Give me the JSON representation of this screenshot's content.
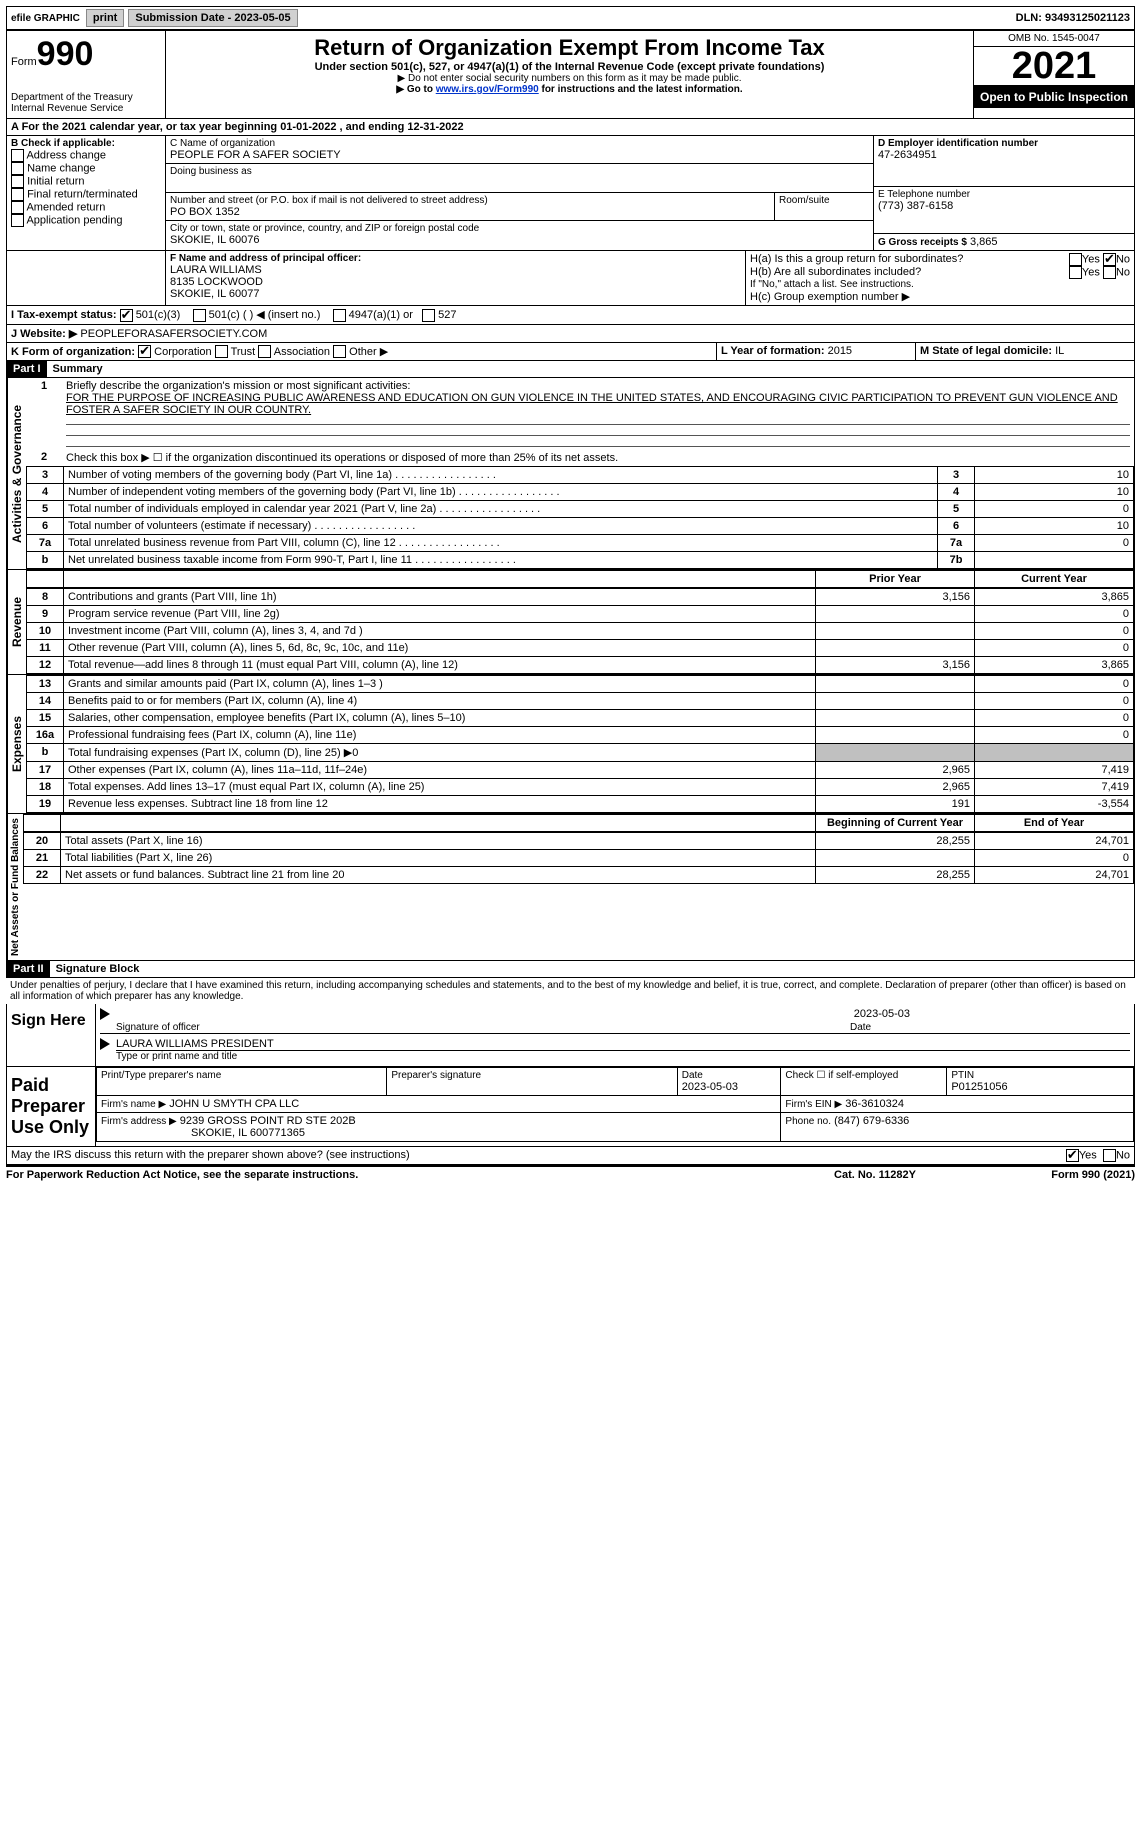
{
  "topbar": {
    "efile": "efile GRAPHIC",
    "print": "print",
    "submission_label": "Submission Date - 2023-05-05",
    "dln_label": "DLN: 93493125021123"
  },
  "header": {
    "form_word": "Form",
    "form_number": "990",
    "dept": "Department of the Treasury",
    "irs": "Internal Revenue Service",
    "title": "Return of Organization Exempt From Income Tax",
    "subtitle": "Under section 501(c), 527, or 4947(a)(1) of the Internal Revenue Code (except private foundations)",
    "instr1": "▶ Do not enter social security numbers on this form as it may be made public.",
    "instr2_pre": "▶ Go to ",
    "instr2_link": "www.irs.gov/Form990",
    "instr2_post": " for instructions and the latest information.",
    "omb": "OMB No. 1545-0047",
    "year": "2021",
    "open": "Open to Public Inspection"
  },
  "line_a": "A For the 2021 calendar year, or tax year beginning 01-01-2022   , and ending 12-31-2022",
  "section_b": {
    "label": "B Check if applicable:",
    "items": [
      "Address change",
      "Name change",
      "Initial return",
      "Final return/terminated",
      "Amended return",
      "Application pending"
    ]
  },
  "section_c": {
    "label": "C Name of organization",
    "name": "PEOPLE FOR A SAFER SOCIETY",
    "dba_label": "Doing business as",
    "addr_label": "Number and street (or P.O. box if mail is not delivered to street address)",
    "room_label": "Room/suite",
    "addr": "PO BOX 1352",
    "city_label": "City or town, state or province, country, and ZIP or foreign postal code",
    "city": "SKOKIE, IL  60076"
  },
  "section_d": {
    "label": "D Employer identification number",
    "ein": "47-2634951"
  },
  "section_e": {
    "label": "E Telephone number",
    "phone": "(773) 387-6158"
  },
  "section_g": {
    "label": "G Gross receipts $",
    "amount": "3,865"
  },
  "section_f": {
    "label": "F Name and address of principal officer:",
    "name": "LAURA WILLIAMS",
    "street": "8135 LOCKWOOD",
    "city": "SKOKIE, IL  60077"
  },
  "section_h": {
    "ha": "H(a)  Is this a group return for subordinates?",
    "hb": "H(b)  Are all subordinates included?",
    "hb_note": "If \"No,\" attach a list. See instructions.",
    "hc": "H(c)  Group exemption number ▶",
    "yes": "Yes",
    "no": "No"
  },
  "section_i": {
    "label": "I  Tax-exempt status:",
    "opt1": "501(c)(3)",
    "opt2": "501(c) (  ) ◀ (insert no.)",
    "opt3": "4947(a)(1) or",
    "opt4": "527"
  },
  "section_j": {
    "label": "J  Website: ▶",
    "value": "PEOPLEFORASAFERSOCIETY.COM"
  },
  "section_k": {
    "label": "K Form of organization:",
    "opts": [
      "Corporation",
      "Trust",
      "Association",
      "Other ▶"
    ]
  },
  "section_l": {
    "label": "L Year of formation:",
    "value": "2015"
  },
  "section_m": {
    "label": "M State of legal domicile:",
    "value": "IL"
  },
  "part1": {
    "header": "Part I",
    "title": "Summary",
    "side_activities": "Activities & Governance",
    "side_revenue": "Revenue",
    "side_expenses": "Expenses",
    "side_net": "Net Assets or Fund Balances",
    "line1_label": "Briefly describe the organization's mission or most significant activities:",
    "line1_text": "FOR THE PURPOSE OF INCREASING PUBLIC AWARENESS AND EDUCATION ON GUN VIOLENCE IN THE UNITED STATES, AND ENCOURAGING CIVIC PARTICIPATION TO PREVENT GUN VIOLENCE AND FOSTER A SAFER SOCIETY IN OUR COUNTRY.",
    "line2": "Check this box ▶ ☐ if the organization discontinued its operations or disposed of more than 25% of its net assets.",
    "rows_a": [
      {
        "n": "3",
        "label": "Number of voting members of the governing body (Part VI, line 1a)",
        "box": "3",
        "val": "10"
      },
      {
        "n": "4",
        "label": "Number of independent voting members of the governing body (Part VI, line 1b)",
        "box": "4",
        "val": "10"
      },
      {
        "n": "5",
        "label": "Total number of individuals employed in calendar year 2021 (Part V, line 2a)",
        "box": "5",
        "val": "0"
      },
      {
        "n": "6",
        "label": "Total number of volunteers (estimate if necessary)",
        "box": "6",
        "val": "10"
      },
      {
        "n": "7a",
        "label": "Total unrelated business revenue from Part VIII, column (C), line 12",
        "box": "7a",
        "val": "0"
      },
      {
        "n": "b",
        "label": "Net unrelated business taxable income from Form 990-T, Part I, line 11",
        "box": "7b",
        "val": ""
      }
    ],
    "col_prior": "Prior Year",
    "col_current": "Current Year",
    "rows_rev": [
      {
        "n": "8",
        "label": "Contributions and grants (Part VIII, line 1h)",
        "py": "3,156",
        "cy": "3,865"
      },
      {
        "n": "9",
        "label": "Program service revenue (Part VIII, line 2g)",
        "py": "",
        "cy": "0"
      },
      {
        "n": "10",
        "label": "Investment income (Part VIII, column (A), lines 3, 4, and 7d )",
        "py": "",
        "cy": "0"
      },
      {
        "n": "11",
        "label": "Other revenue (Part VIII, column (A), lines 5, 6d, 8c, 9c, 10c, and 11e)",
        "py": "",
        "cy": "0"
      },
      {
        "n": "12",
        "label": "Total revenue—add lines 8 through 11 (must equal Part VIII, column (A), line 12)",
        "py": "3,156",
        "cy": "3,865"
      }
    ],
    "rows_exp": [
      {
        "n": "13",
        "label": "Grants and similar amounts paid (Part IX, column (A), lines 1–3 )",
        "py": "",
        "cy": "0"
      },
      {
        "n": "14",
        "label": "Benefits paid to or for members (Part IX, column (A), line 4)",
        "py": "",
        "cy": "0"
      },
      {
        "n": "15",
        "label": "Salaries, other compensation, employee benefits (Part IX, column (A), lines 5–10)",
        "py": "",
        "cy": "0"
      },
      {
        "n": "16a",
        "label": "Professional fundraising fees (Part IX, column (A), line 11e)",
        "py": "",
        "cy": "0"
      },
      {
        "n": "b",
        "label": "Total fundraising expenses (Part IX, column (D), line 25) ▶0",
        "py": "shade",
        "cy": "shade"
      },
      {
        "n": "17",
        "label": "Other expenses (Part IX, column (A), lines 11a–11d, 11f–24e)",
        "py": "2,965",
        "cy": "7,419"
      },
      {
        "n": "18",
        "label": "Total expenses. Add lines 13–17 (must equal Part IX, column (A), line 25)",
        "py": "2,965",
        "cy": "7,419"
      },
      {
        "n": "19",
        "label": "Revenue less expenses. Subtract line 18 from line 12",
        "py": "191",
        "cy": "-3,554"
      }
    ],
    "col_begin": "Beginning of Current Year",
    "col_end": "End of Year",
    "rows_net": [
      {
        "n": "20",
        "label": "Total assets (Part X, line 16)",
        "py": "28,255",
        "cy": "24,701"
      },
      {
        "n": "21",
        "label": "Total liabilities (Part X, line 26)",
        "py": "",
        "cy": "0"
      },
      {
        "n": "22",
        "label": "Net assets or fund balances. Subtract line 21 from line 20",
        "py": "28,255",
        "cy": "24,701"
      }
    ]
  },
  "part2": {
    "header": "Part II",
    "title": "Signature Block",
    "perjury": "Under penalties of perjury, I declare that I have examined this return, including accompanying schedules and statements, and to the best of my knowledge and belief, it is true, correct, and complete. Declaration of preparer (other than officer) is based on all information of which preparer has any knowledge.",
    "sign_here": "Sign Here",
    "sig_officer": "Signature of officer",
    "sig_date": "2023-05-03",
    "officer_name": "LAURA WILLIAMS  PRESIDENT",
    "type_name": "Type or print name and title",
    "paid": "Paid Preparer Use Only",
    "prep_name_label": "Print/Type preparer's name",
    "prep_sig_label": "Preparer's signature",
    "date_label": "Date",
    "date_val": "2023-05-03",
    "check_self": "Check ☐ if self-employed",
    "ptin_label": "PTIN",
    "ptin": "P01251056",
    "firm_name_label": "Firm's name    ▶",
    "firm_name": "JOHN U SMYTH CPA LLC",
    "firm_ein_label": "Firm's EIN ▶",
    "firm_ein": "36-3610324",
    "firm_addr_label": "Firm's address ▶",
    "firm_addr1": "9239 GROSS POINT RD STE 202B",
    "firm_addr2": "SKOKIE, IL  600771365",
    "phone_label": "Phone no.",
    "phone": "(847) 679-6336",
    "discuss": "May the IRS discuss this return with the preparer shown above? (see instructions)",
    "yes": "Yes",
    "no": "No"
  },
  "footer": {
    "left": "For Paperwork Reduction Act Notice, see the separate instructions.",
    "center": "Cat. No. 11282Y",
    "right": "Form 990 (2021)"
  }
}
